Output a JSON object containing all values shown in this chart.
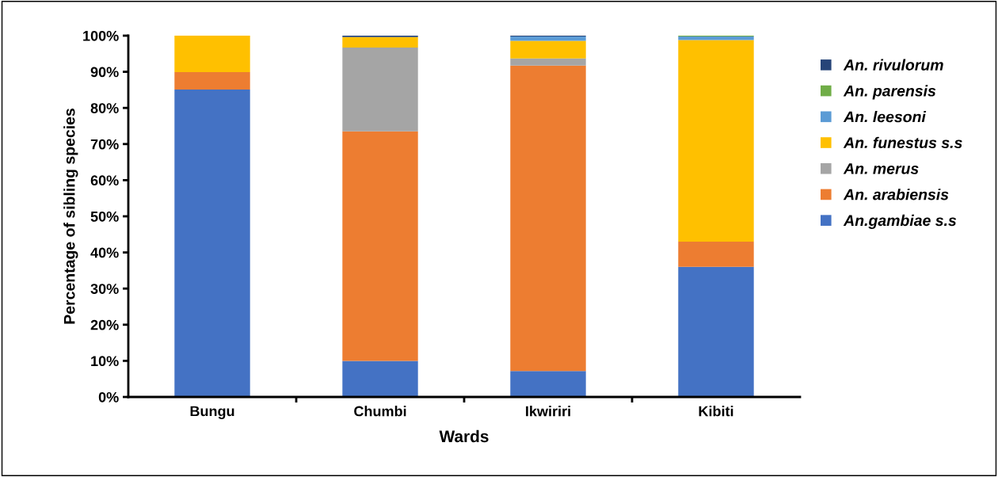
{
  "chart_data": {
    "type": "bar",
    "stacked": true,
    "xlabel": "Wards",
    "ylabel": "Percentage of sibling species",
    "categories": [
      "Bungu",
      "Chumbi",
      "Ikwiriri",
      "Kibiti"
    ],
    "series": [
      {
        "name": "An.gambiae s.s",
        "color": "#4472c4",
        "values": [
          85.1,
          10.0,
          7.2,
          36.0
        ]
      },
      {
        "name": "An. arabiensis",
        "color": "#ed7d31",
        "values": [
          4.8,
          63.5,
          84.5,
          7.0
        ]
      },
      {
        "name": "An. merus",
        "color": "#a5a5a5",
        "values": [
          0,
          23.2,
          2.0,
          0
        ]
      },
      {
        "name": "An. funestus s.s",
        "color": "#ffc000",
        "values": [
          10.1,
          2.9,
          4.9,
          55.8
        ]
      },
      {
        "name": "An. leesoni",
        "color": "#5b9bd5",
        "values": [
          0,
          0,
          1.2,
          1.0
        ]
      },
      {
        "name": "An. parensis",
        "color": "#70ad47",
        "values": [
          0,
          0,
          0,
          0.2
        ]
      },
      {
        "name": "An. rivulorum",
        "color": "#264478",
        "values": [
          0,
          0.4,
          0.2,
          0
        ]
      }
    ],
    "ylim": [
      0,
      100
    ],
    "yticks": [
      {
        "value": 0,
        "label": "0%"
      },
      {
        "value": 10,
        "label": "10%"
      },
      {
        "value": 20,
        "label": "20%"
      },
      {
        "value": 30,
        "label": "30%"
      },
      {
        "value": 40,
        "label": "40%"
      },
      {
        "value": 50,
        "label": "50%"
      },
      {
        "value": 60,
        "label": "60%"
      },
      {
        "value": 70,
        "label": "70%"
      },
      {
        "value": 80,
        "label": "80%"
      },
      {
        "value": 90,
        "label": "90%"
      },
      {
        "value": 100,
        "label": "100%"
      }
    ],
    "grid": false,
    "legend": "right"
  }
}
